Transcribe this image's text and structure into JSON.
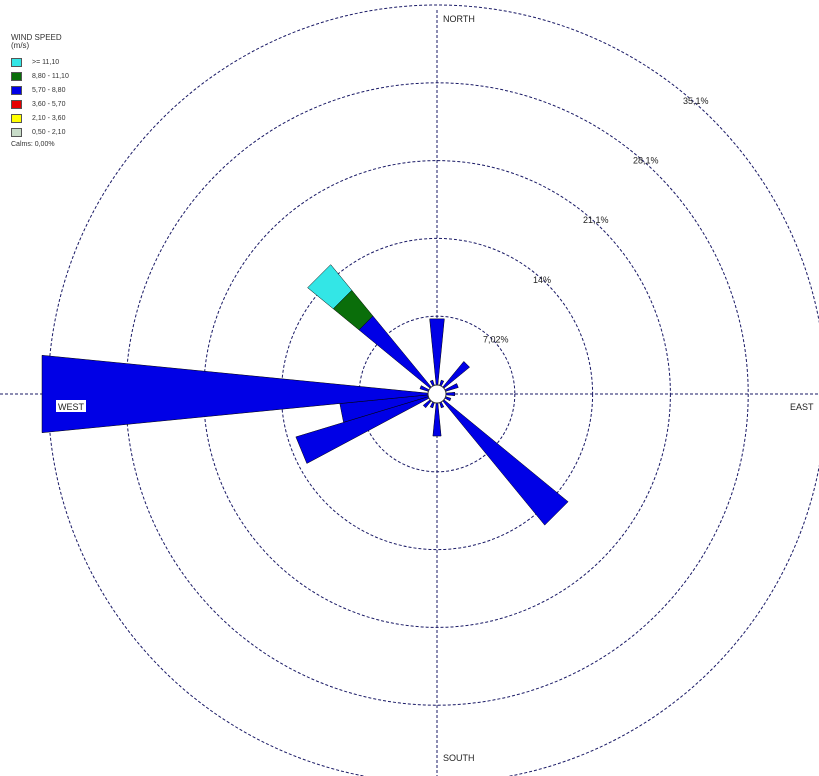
{
  "chart_data": {
    "type": "wind_rose",
    "legend": {
      "title": "WIND SPEED",
      "unit": "(m/s)",
      "classes": [
        {
          "label": ">= 11,10",
          "color": "#33e6e6"
        },
        {
          "label": "8,80 - 11,10",
          "color": "#0a6e0a"
        },
        {
          "label": "5,70 - 8,80",
          "color": "#0000e6"
        },
        {
          "label": "3,60 - 5,70",
          "color": "#e60000"
        },
        {
          "label": "2,10 - 3,60",
          "color": "#ffff00"
        },
        {
          "label": "0,50 - 2,10",
          "color": "#c8dcc8"
        }
      ],
      "calms": "Calms: 0,00%"
    },
    "directions": [
      "NORTH",
      "EAST",
      "SOUTH",
      "WEST"
    ],
    "ring_labels": [
      "7,02%",
      "14%",
      "21,1%",
      "28,1%",
      "35,1%"
    ],
    "ring_values": [
      7.02,
      14.04,
      21.06,
      28.08,
      35.1
    ],
    "sectors": [
      {
        "dir": 0,
        "bins": [
          {
            "cls": 2,
            "pct": 6.0
          }
        ]
      },
      {
        "dir": 22.5,
        "bins": [
          {
            "cls": 2,
            "pct": 0.5
          }
        ]
      },
      {
        "dir": 45,
        "bins": [
          {
            "cls": 2,
            "pct": 3.0
          }
        ]
      },
      {
        "dir": 67.5,
        "bins": [
          {
            "cls": 2,
            "pct": 1.2
          }
        ]
      },
      {
        "dir": 90,
        "bins": [
          {
            "cls": 2,
            "pct": 0.8
          }
        ]
      },
      {
        "dir": 112.5,
        "bins": [
          {
            "cls": 2,
            "pct": 0.5
          }
        ]
      },
      {
        "dir": 135,
        "bins": [
          {
            "cls": 2,
            "pct": 14.5
          }
        ]
      },
      {
        "dir": 157.5,
        "bins": [
          {
            "cls": 2,
            "pct": 0.5
          }
        ]
      },
      {
        "dir": 180,
        "bins": [
          {
            "cls": 2,
            "pct": 3.0
          }
        ]
      },
      {
        "dir": 202.5,
        "bins": [
          {
            "cls": 2,
            "pct": 0.5
          }
        ]
      },
      {
        "dir": 225,
        "bins": [
          {
            "cls": 2,
            "pct": 0.8
          }
        ]
      },
      {
        "dir": 247.5,
        "bins": [
          {
            "cls": 2,
            "pct": 12.5
          }
        ]
      },
      {
        "dir": 258.75,
        "bins": [
          {
            "cls": 2,
            "pct": 8.0
          }
        ]
      },
      {
        "dir": 270,
        "bins": [
          {
            "cls": 2,
            "pct": 35.0
          }
        ]
      },
      {
        "dir": 292.5,
        "bins": [
          {
            "cls": 2,
            "pct": 0.8
          }
        ]
      },
      {
        "dir": 315,
        "bins": [
          {
            "cls": 2,
            "pct": 8.3
          },
          {
            "cls": 1,
            "pct": 3.0
          },
          {
            "cls": 0,
            "pct": 3.0
          }
        ]
      },
      {
        "dir": 337.5,
        "bins": [
          {
            "cls": 2,
            "pct": 0.5
          }
        ]
      }
    ]
  }
}
